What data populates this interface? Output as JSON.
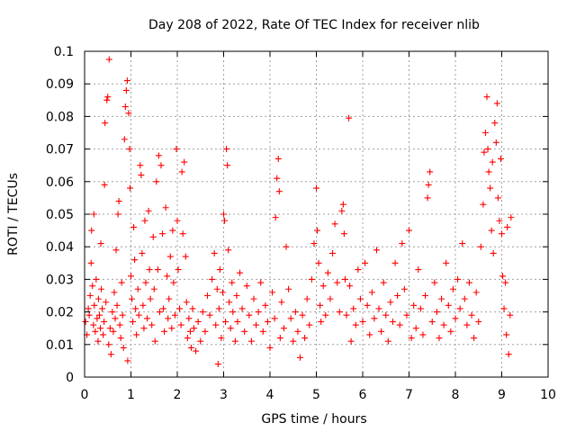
{
  "chart_data": {
    "type": "scatter",
    "title": "Day 208 of 2022, Rate Of TEC Index for receiver nlib",
    "xlabel": "GPS time / hours",
    "ylabel": "ROTI / TECUs",
    "xlim": [
      0,
      10
    ],
    "ylim": [
      0,
      0.1
    ],
    "x_ticks": [
      "0",
      "1",
      "2",
      "3",
      "4",
      "5",
      "6",
      "7",
      "8",
      "9",
      "10"
    ],
    "y_ticks": [
      "0",
      "0.01",
      "0.02",
      "0.03",
      "0.04",
      "0.05",
      "0.06",
      "0.07",
      "0.08",
      "0.09",
      "0.1"
    ],
    "grid": true,
    "marker": "plus",
    "color": "#ff0000",
    "series": [
      {
        "points": [
          [
            0.02,
            0.017
          ],
          [
            0.05,
            0.013
          ],
          [
            0.08,
            0.021
          ],
          [
            0.1,
            0.019
          ],
          [
            0.12,
            0.025
          ],
          [
            0.14,
            0.035
          ],
          [
            0.15,
            0.045
          ],
          [
            0.17,
            0.028
          ],
          [
            0.19,
            0.016
          ],
          [
            0.2,
            0.05
          ],
          [
            0.21,
            0.022
          ],
          [
            0.23,
            0.014
          ],
          [
            0.25,
            0.03
          ],
          [
            0.27,
            0.018
          ],
          [
            0.29,
            0.011
          ],
          [
            0.3,
            0.024
          ],
          [
            0.32,
            0.019
          ],
          [
            0.34,
            0.015
          ],
          [
            0.35,
            0.041
          ],
          [
            0.36,
            0.027
          ],
          [
            0.38,
            0.021
          ],
          [
            0.4,
            0.013
          ],
          [
            0.42,
            0.017
          ],
          [
            0.43,
            0.059
          ],
          [
            0.44,
            0.078
          ],
          [
            0.46,
            0.023
          ],
          [
            0.48,
            0.085
          ],
          [
            0.5,
            0.086
          ],
          [
            0.52,
            0.01
          ],
          [
            0.53,
            0.0975
          ],
          [
            0.55,
            0.015
          ],
          [
            0.57,
            0.007
          ],
          [
            0.6,
            0.02
          ],
          [
            0.62,
            0.014
          ],
          [
            0.64,
            0.026
          ],
          [
            0.66,
            0.018
          ],
          [
            0.68,
            0.039
          ],
          [
            0.7,
            0.022
          ],
          [
            0.72,
            0.05
          ],
          [
            0.74,
            0.054
          ],
          [
            0.76,
            0.016
          ],
          [
            0.78,
            0.012
          ],
          [
            0.8,
            0.029
          ],
          [
            0.82,
            0.019
          ],
          [
            0.84,
            0.009
          ],
          [
            0.86,
            0.073
          ],
          [
            0.88,
            0.083
          ],
          [
            0.9,
            0.088
          ],
          [
            0.92,
            0.091
          ],
          [
            0.93,
            0.005
          ],
          [
            0.95,
            0.081
          ],
          [
            0.97,
            0.07
          ],
          [
            0.98,
            0.058
          ],
          [
            1.0,
            0.031
          ],
          [
            1.02,
            0.024
          ],
          [
            1.04,
            0.017
          ],
          [
            1.06,
            0.046
          ],
          [
            1.08,
            0.036
          ],
          [
            1.1,
            0.021
          ],
          [
            1.12,
            0.013
          ],
          [
            1.15,
            0.027
          ],
          [
            1.17,
            0.019
          ],
          [
            1.2,
            0.065
          ],
          [
            1.22,
            0.062
          ],
          [
            1.24,
            0.038
          ],
          [
            1.26,
            0.022
          ],
          [
            1.28,
            0.015
          ],
          [
            1.3,
            0.048
          ],
          [
            1.32,
            0.029
          ],
          [
            1.35,
            0.018
          ],
          [
            1.38,
            0.051
          ],
          [
            1.4,
            0.033
          ],
          [
            1.42,
            0.024
          ],
          [
            1.45,
            0.016
          ],
          [
            1.48,
            0.043
          ],
          [
            1.5,
            0.027
          ],
          [
            1.52,
            0.011
          ],
          [
            1.55,
            0.06
          ],
          [
            1.58,
            0.033
          ],
          [
            1.6,
            0.068
          ],
          [
            1.62,
            0.02
          ],
          [
            1.65,
            0.065
          ],
          [
            1.68,
            0.044
          ],
          [
            1.7,
            0.021
          ],
          [
            1.72,
            0.014
          ],
          [
            1.75,
            0.052
          ],
          [
            1.78,
            0.031
          ],
          [
            1.8,
            0.018
          ],
          [
            1.82,
            0.024
          ],
          [
            1.85,
            0.037
          ],
          [
            1.88,
            0.015
          ],
          [
            1.9,
            0.045
          ],
          [
            1.92,
            0.029
          ],
          [
            1.95,
            0.019
          ],
          [
            1.98,
            0.07
          ],
          [
            2.0,
            0.048
          ],
          [
            2.02,
            0.033
          ],
          [
            2.05,
            0.021
          ],
          [
            2.08,
            0.016
          ],
          [
            2.1,
            0.063
          ],
          [
            2.12,
            0.044
          ],
          [
            2.15,
            0.066
          ],
          [
            2.18,
            0.037
          ],
          [
            2.2,
            0.023
          ],
          [
            2.22,
            0.012
          ],
          [
            2.25,
            0.018
          ],
          [
            2.28,
            0.014
          ],
          [
            2.3,
            0.009
          ],
          [
            2.33,
            0.021
          ],
          [
            2.36,
            0.015
          ],
          [
            2.4,
            0.008
          ],
          [
            2.45,
            0.017
          ],
          [
            2.5,
            0.011
          ],
          [
            2.55,
            0.02
          ],
          [
            2.6,
            0.014
          ],
          [
            2.65,
            0.025
          ],
          [
            2.7,
            0.019
          ],
          [
            2.75,
            0.03
          ],
          [
            2.8,
            0.038
          ],
          [
            2.83,
            0.016
          ],
          [
            2.86,
            0.027
          ],
          [
            2.88,
            0.004
          ],
          [
            2.9,
            0.021
          ],
          [
            2.92,
            0.033
          ],
          [
            2.95,
            0.012
          ],
          [
            2.98,
            0.026
          ],
          [
            3.0,
            0.05
          ],
          [
            3.02,
            0.048
          ],
          [
            3.04,
            0.017
          ],
          [
            3.06,
            0.07
          ],
          [
            3.08,
            0.065
          ],
          [
            3.1,
            0.039
          ],
          [
            3.12,
            0.023
          ],
          [
            3.15,
            0.015
          ],
          [
            3.18,
            0.029
          ],
          [
            3.2,
            0.02
          ],
          [
            3.25,
            0.011
          ],
          [
            3.28,
            0.025
          ],
          [
            3.3,
            0.017
          ],
          [
            3.35,
            0.032
          ],
          [
            3.4,
            0.021
          ],
          [
            3.45,
            0.014
          ],
          [
            3.5,
            0.028
          ],
          [
            3.55,
            0.019
          ],
          [
            3.6,
            0.011
          ],
          [
            3.65,
            0.024
          ],
          [
            3.7,
            0.016
          ],
          [
            3.75,
            0.02
          ],
          [
            3.8,
            0.029
          ],
          [
            3.85,
            0.014
          ],
          [
            3.9,
            0.022
          ],
          [
            3.95,
            0.017
          ],
          [
            4.0,
            0.009
          ],
          [
            4.05,
            0.026
          ],
          [
            4.1,
            0.018
          ],
          [
            4.12,
            0.049
          ],
          [
            4.15,
            0.061
          ],
          [
            4.18,
            0.067
          ],
          [
            4.2,
            0.057
          ],
          [
            4.22,
            0.012
          ],
          [
            4.25,
            0.023
          ],
          [
            4.3,
            0.015
          ],
          [
            4.35,
            0.04
          ],
          [
            4.4,
            0.027
          ],
          [
            4.45,
            0.018
          ],
          [
            4.5,
            0.011
          ],
          [
            4.55,
            0.02
          ],
          [
            4.6,
            0.014
          ],
          [
            4.65,
            0.006
          ],
          [
            4.7,
            0.019
          ],
          [
            4.75,
            0.012
          ],
          [
            4.8,
            0.024
          ],
          [
            4.85,
            0.016
          ],
          [
            4.9,
            0.03
          ],
          [
            4.95,
            0.041
          ],
          [
            5.0,
            0.058
          ],
          [
            5.02,
            0.045
          ],
          [
            5.05,
            0.035
          ],
          [
            5.08,
            0.022
          ],
          [
            5.1,
            0.017
          ],
          [
            5.15,
            0.028
          ],
          [
            5.2,
            0.019
          ],
          [
            5.25,
            0.032
          ],
          [
            5.3,
            0.024
          ],
          [
            5.35,
            0.038
          ],
          [
            5.4,
            0.047
          ],
          [
            5.45,
            0.029
          ],
          [
            5.5,
            0.02
          ],
          [
            5.55,
            0.051
          ],
          [
            5.58,
            0.053
          ],
          [
            5.6,
            0.044
          ],
          [
            5.62,
            0.03
          ],
          [
            5.65,
            0.019
          ],
          [
            5.7,
            0.0795
          ],
          [
            5.72,
            0.028
          ],
          [
            5.75,
            0.011
          ],
          [
            5.8,
            0.021
          ],
          [
            5.85,
            0.016
          ],
          [
            5.9,
            0.033
          ],
          [
            5.95,
            0.024
          ],
          [
            6.0,
            0.017
          ],
          [
            6.05,
            0.035
          ],
          [
            6.1,
            0.022
          ],
          [
            6.15,
            0.013
          ],
          [
            6.2,
            0.026
          ],
          [
            6.25,
            0.018
          ],
          [
            6.3,
            0.039
          ],
          [
            6.35,
            0.021
          ],
          [
            6.4,
            0.014
          ],
          [
            6.45,
            0.029
          ],
          [
            6.5,
            0.019
          ],
          [
            6.55,
            0.011
          ],
          [
            6.6,
            0.023
          ],
          [
            6.65,
            0.017
          ],
          [
            6.7,
            0.035
          ],
          [
            6.75,
            0.025
          ],
          [
            6.8,
            0.016
          ],
          [
            6.85,
            0.041
          ],
          [
            6.9,
            0.027
          ],
          [
            6.95,
            0.019
          ],
          [
            7.0,
            0.045
          ],
          [
            7.05,
            0.012
          ],
          [
            7.1,
            0.022
          ],
          [
            7.15,
            0.015
          ],
          [
            7.2,
            0.033
          ],
          [
            7.25,
            0.021
          ],
          [
            7.3,
            0.013
          ],
          [
            7.35,
            0.025
          ],
          [
            7.4,
            0.055
          ],
          [
            7.42,
            0.059
          ],
          [
            7.45,
            0.063
          ],
          [
            7.5,
            0.017
          ],
          [
            7.55,
            0.029
          ],
          [
            7.6,
            0.02
          ],
          [
            7.65,
            0.012
          ],
          [
            7.7,
            0.024
          ],
          [
            7.75,
            0.016
          ],
          [
            7.8,
            0.035
          ],
          [
            7.85,
            0.022
          ],
          [
            7.9,
            0.014
          ],
          [
            7.95,
            0.027
          ],
          [
            8.0,
            0.018
          ],
          [
            8.05,
            0.03
          ],
          [
            8.1,
            0.021
          ],
          [
            8.15,
            0.041
          ],
          [
            8.2,
            0.024
          ],
          [
            8.25,
            0.016
          ],
          [
            8.3,
            0.029
          ],
          [
            8.35,
            0.019
          ],
          [
            8.4,
            0.012
          ],
          [
            8.45,
            0.026
          ],
          [
            8.5,
            0.017
          ],
          [
            8.55,
            0.04
          ],
          [
            8.6,
            0.053
          ],
          [
            8.62,
            0.069
          ],
          [
            8.65,
            0.075
          ],
          [
            8.68,
            0.086
          ],
          [
            8.7,
            0.07
          ],
          [
            8.72,
            0.063
          ],
          [
            8.75,
            0.058
          ],
          [
            8.78,
            0.045
          ],
          [
            8.8,
            0.066
          ],
          [
            8.82,
            0.038
          ],
          [
            8.85,
            0.078
          ],
          [
            8.88,
            0.072
          ],
          [
            8.9,
            0.084
          ],
          [
            8.92,
            0.055
          ],
          [
            8.95,
            0.048
          ],
          [
            8.98,
            0.067
          ],
          [
            9.0,
            0.044
          ],
          [
            9.02,
            0.031
          ],
          [
            9.05,
            0.021
          ],
          [
            9.08,
            0.029
          ],
          [
            9.1,
            0.013
          ],
          [
            9.12,
            0.046
          ],
          [
            9.15,
            0.007
          ],
          [
            9.18,
            0.019
          ],
          [
            9.2,
            0.049
          ]
        ]
      }
    ]
  }
}
